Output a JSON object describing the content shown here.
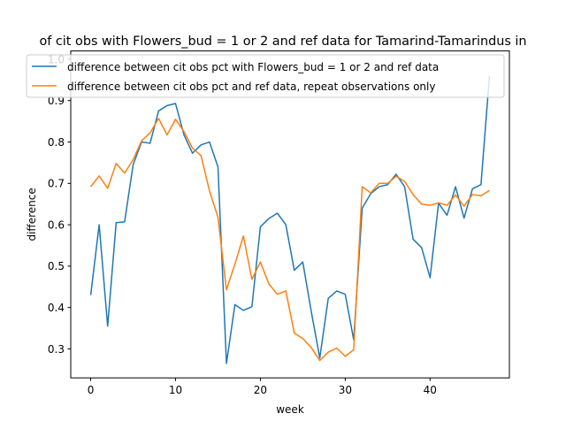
{
  "chart_data": {
    "type": "line",
    "title": "of cit obs with Flowers_bud = 1 or 2 and ref data for Tamarind-Tamarindus in",
    "xlabel": "week",
    "ylabel": "difference",
    "xlim": [
      -2.35,
      49.35
    ],
    "ylim": [
      0.23,
      1.02
    ],
    "xticks": [
      0,
      10,
      20,
      30,
      40
    ],
    "yticks": [
      0.3,
      0.4,
      0.5,
      0.6,
      0.7,
      0.8,
      0.9,
      1.0
    ],
    "ytick_labels": [
      "0.3",
      "0.4",
      "0.5",
      "0.6",
      "0.7",
      "0.8",
      "0.9",
      "1.0"
    ],
    "legend_position": "top",
    "grid": false,
    "series": [
      {
        "name": "difference between cit obs pct with Flowers_bud = 1 or 2 and ref data",
        "color": "#1f77b4",
        "x": [
          0,
          1,
          2,
          3,
          4,
          5,
          6,
          7,
          8,
          9,
          10,
          11,
          12,
          13,
          14,
          15,
          16,
          17,
          18,
          19,
          20,
          21,
          22,
          23,
          24,
          25,
          26,
          27,
          28,
          29,
          30,
          31,
          32,
          33,
          34,
          35,
          36,
          37,
          38,
          39,
          40,
          41,
          42,
          43,
          44,
          45,
          46,
          47
        ],
        "y": [
          0.43,
          0.6,
          0.355,
          0.605,
          0.607,
          0.745,
          0.8,
          0.797,
          0.875,
          0.888,
          0.893,
          0.817,
          0.773,
          0.793,
          0.8,
          0.74,
          0.265,
          0.407,
          0.393,
          0.402,
          0.595,
          0.615,
          0.628,
          0.6,
          0.49,
          0.51,
          0.39,
          0.278,
          0.422,
          0.44,
          0.432,
          0.322,
          0.64,
          0.675,
          0.692,
          0.697,
          0.722,
          0.692,
          0.565,
          0.545,
          0.472,
          0.652,
          0.623,
          0.692,
          0.616,
          0.687,
          0.697,
          0.96
        ]
      },
      {
        "name": "difference between cit obs pct and ref data, repeat observations only",
        "color": "#ff7f0e",
        "x": [
          0,
          1,
          2,
          3,
          4,
          5,
          6,
          7,
          8,
          9,
          10,
          11,
          12,
          13,
          14,
          15,
          16,
          17,
          18,
          19,
          20,
          21,
          22,
          23,
          24,
          25,
          26,
          27,
          28,
          29,
          30,
          31,
          32,
          33,
          34,
          35,
          36,
          37,
          38,
          39,
          40,
          41,
          42,
          43,
          44,
          45,
          46,
          47
        ],
        "y": [
          0.692,
          0.718,
          0.688,
          0.748,
          0.725,
          0.757,
          0.803,
          0.822,
          0.857,
          0.817,
          0.855,
          0.825,
          0.785,
          0.767,
          0.682,
          0.618,
          0.443,
          0.505,
          0.573,
          0.468,
          0.51,
          0.457,
          0.432,
          0.44,
          0.338,
          0.325,
          0.303,
          0.272,
          0.292,
          0.302,
          0.282,
          0.298,
          0.692,
          0.677,
          0.7,
          0.7,
          0.717,
          0.705,
          0.673,
          0.65,
          0.647,
          0.653,
          0.647,
          0.672,
          0.645,
          0.673,
          0.67,
          0.683
        ]
      }
    ]
  }
}
